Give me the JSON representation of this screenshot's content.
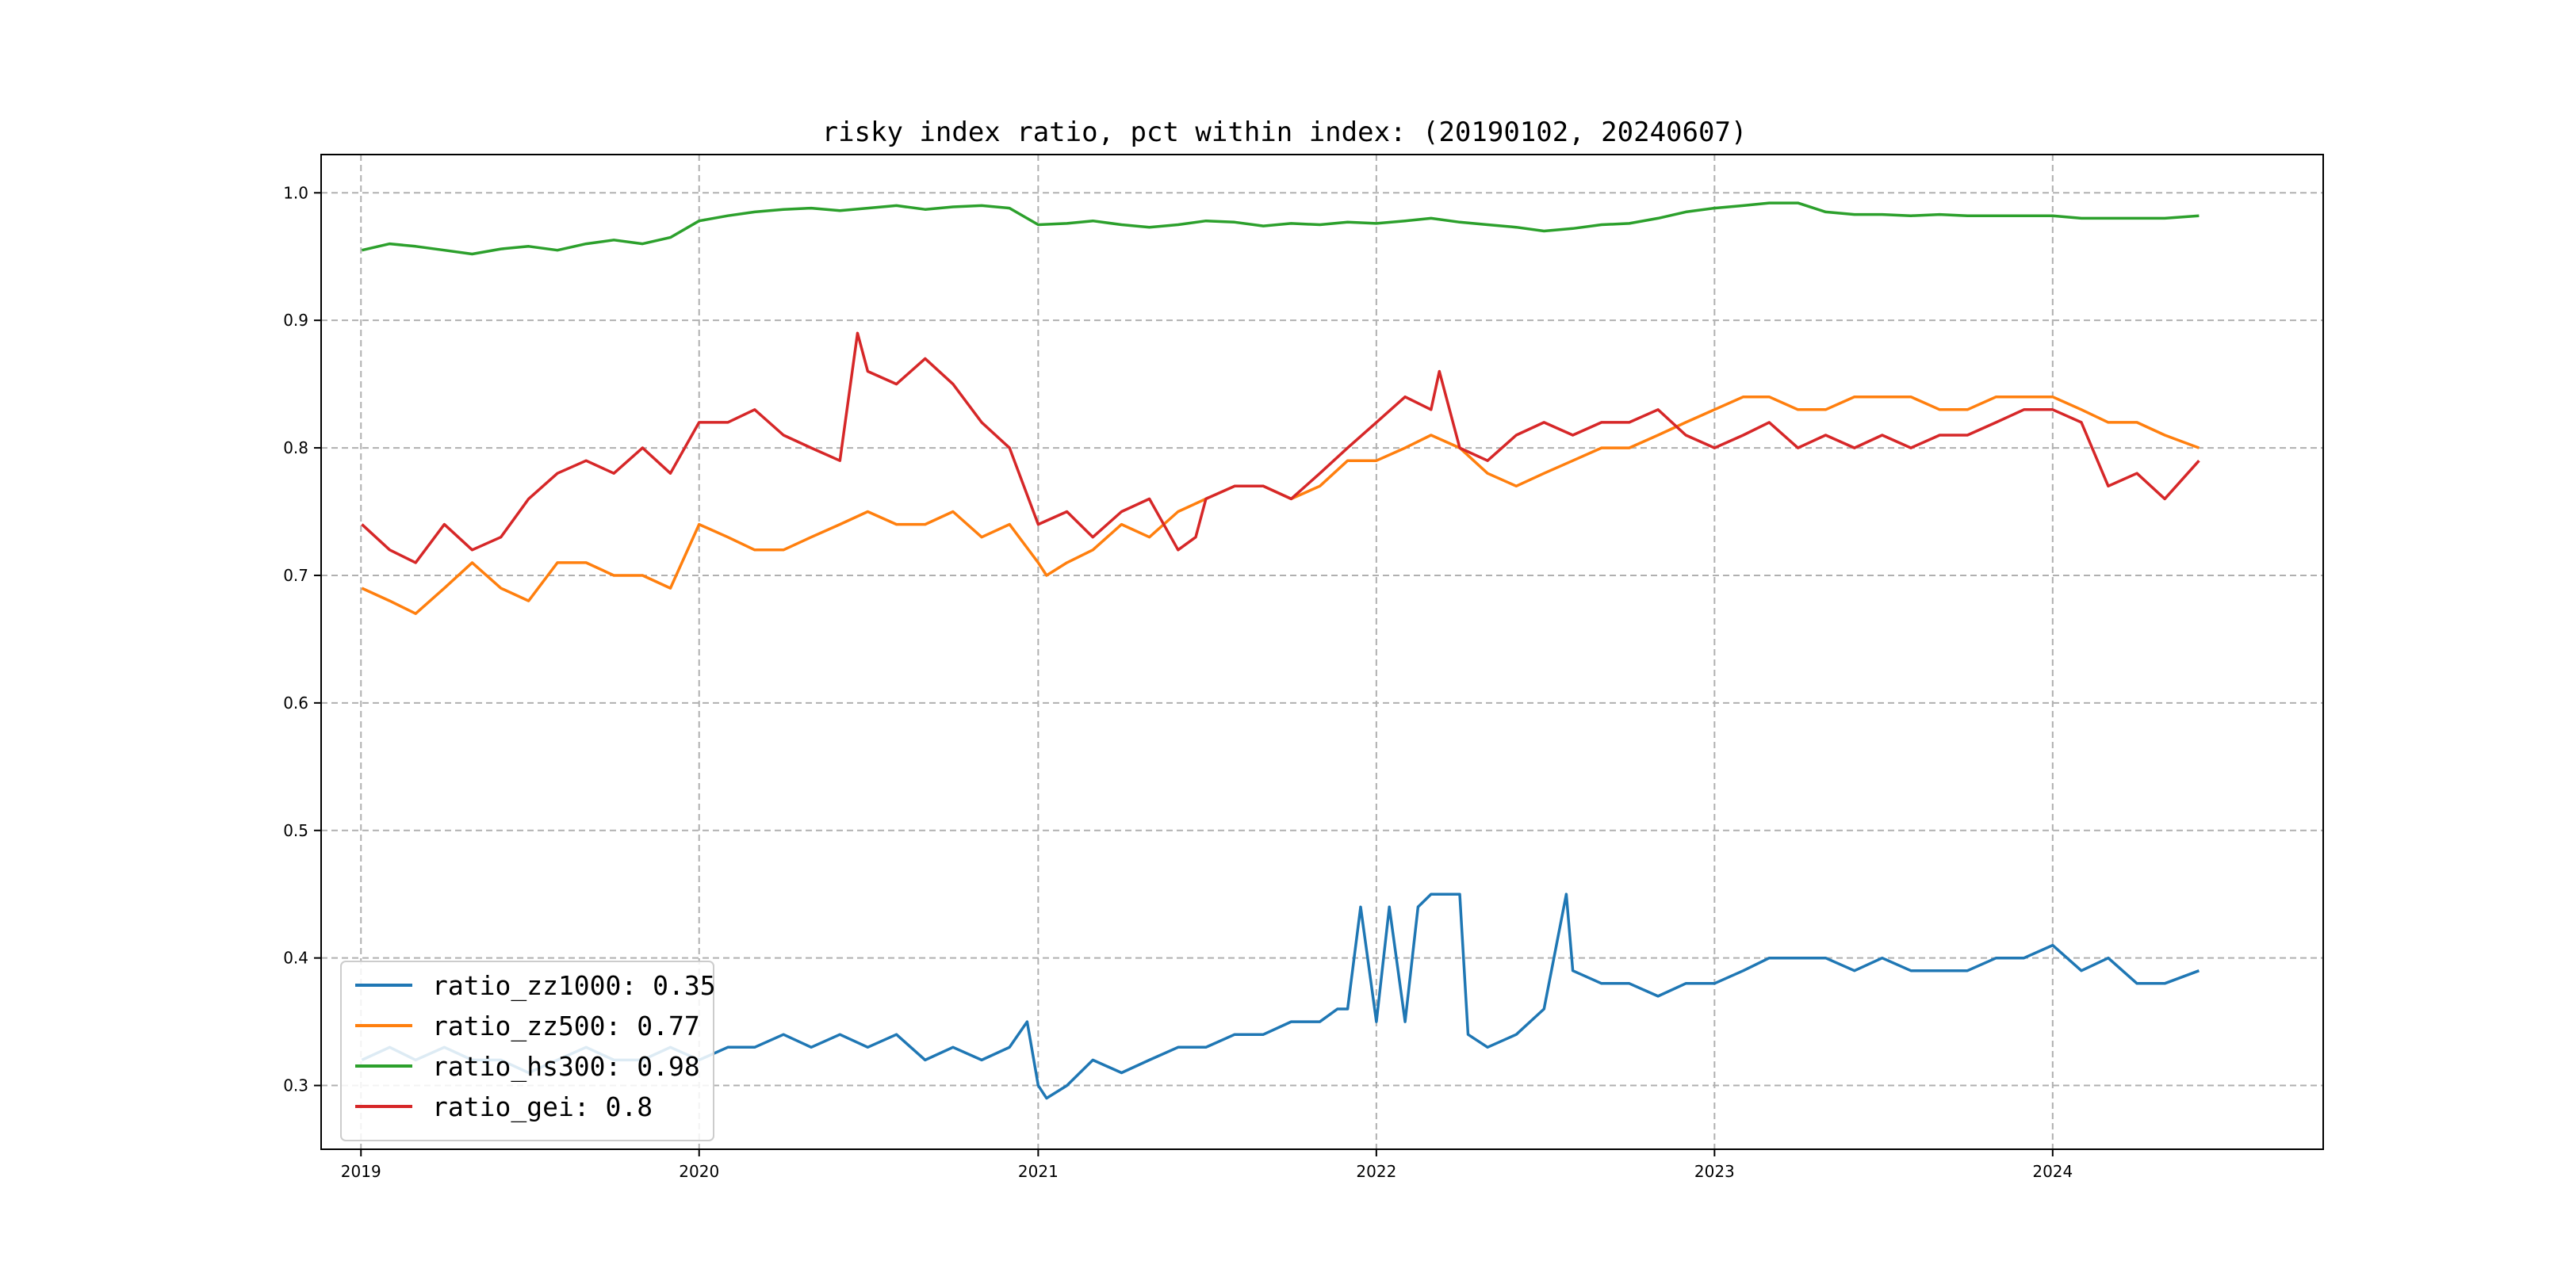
{
  "chart_data": {
    "type": "line",
    "title": "risky index ratio, pct within index: (20190102, 20240607)",
    "xlabel": "",
    "ylabel": "",
    "xlim": [
      "2018-11-19",
      "2024-10-19"
    ],
    "ylim": [
      0.25,
      1.03
    ],
    "x_ticks": [
      "2019",
      "2020",
      "2021",
      "2022",
      "2023",
      "2024"
    ],
    "y_ticks": [
      "0.3",
      "0.4",
      "0.5",
      "0.6",
      "0.7",
      "0.8",
      "0.9",
      "1.0"
    ],
    "grid": true,
    "legend_position": "lower-left",
    "series": [
      {
        "name": "ratio_zz1000: 0.35",
        "color": "#1f77b4",
        "x": [
          "2019-01-02",
          "2019-02-01",
          "2019-03-01",
          "2019-04-01",
          "2019-05-01",
          "2019-06-01",
          "2019-07-01",
          "2019-08-01",
          "2019-09-01",
          "2019-10-01",
          "2019-11-01",
          "2019-12-01",
          "2020-01-01",
          "2020-02-01",
          "2020-03-01",
          "2020-04-01",
          "2020-05-01",
          "2020-06-01",
          "2020-07-01",
          "2020-08-01",
          "2020-09-01",
          "2020-10-01",
          "2020-11-01",
          "2020-12-01",
          "2020-12-20",
          "2021-01-01",
          "2021-01-10",
          "2021-02-01",
          "2021-03-01",
          "2021-04-01",
          "2021-05-01",
          "2021-06-01",
          "2021-07-01",
          "2021-08-01",
          "2021-09-01",
          "2021-10-01",
          "2021-11-01",
          "2021-11-20",
          "2021-12-01",
          "2021-12-15",
          "2022-01-01",
          "2022-01-15",
          "2022-02-01",
          "2022-02-15",
          "2022-03-01",
          "2022-03-20",
          "2022-04-01",
          "2022-04-10",
          "2022-05-01",
          "2022-06-01",
          "2022-07-01",
          "2022-07-25",
          "2022-08-01",
          "2022-09-01",
          "2022-10-01",
          "2022-11-01",
          "2022-12-01",
          "2023-01-01",
          "2023-02-01",
          "2023-03-01",
          "2023-04-01",
          "2023-05-01",
          "2023-06-01",
          "2023-07-01",
          "2023-08-01",
          "2023-09-01",
          "2023-10-01",
          "2023-11-01",
          "2023-12-01",
          "2024-01-01",
          "2024-02-01",
          "2024-03-01",
          "2024-04-01",
          "2024-05-01",
          "2024-06-07"
        ],
        "values": [
          0.32,
          0.33,
          0.32,
          0.33,
          0.32,
          0.32,
          0.31,
          0.32,
          0.33,
          0.32,
          0.32,
          0.33,
          0.32,
          0.33,
          0.33,
          0.34,
          0.33,
          0.34,
          0.33,
          0.34,
          0.32,
          0.33,
          0.32,
          0.33,
          0.35,
          0.3,
          0.29,
          0.3,
          0.32,
          0.31,
          0.32,
          0.33,
          0.33,
          0.34,
          0.34,
          0.35,
          0.35,
          0.36,
          0.36,
          0.44,
          0.35,
          0.44,
          0.35,
          0.44,
          0.45,
          0.45,
          0.45,
          0.34,
          0.33,
          0.34,
          0.36,
          0.45,
          0.39,
          0.38,
          0.38,
          0.37,
          0.38,
          0.38,
          0.39,
          0.4,
          0.4,
          0.4,
          0.39,
          0.4,
          0.39,
          0.39,
          0.39,
          0.4,
          0.4,
          0.41,
          0.39,
          0.4,
          0.38,
          0.38,
          0.39
        ]
      },
      {
        "name": "ratio_zz500: 0.77",
        "color": "#ff7f0e",
        "x": [
          "2019-01-02",
          "2019-02-01",
          "2019-03-01",
          "2019-04-01",
          "2019-05-01",
          "2019-06-01",
          "2019-07-01",
          "2019-08-01",
          "2019-09-01",
          "2019-10-01",
          "2019-11-01",
          "2019-12-01",
          "2020-01-01",
          "2020-02-01",
          "2020-03-01",
          "2020-04-01",
          "2020-05-01",
          "2020-06-01",
          "2020-07-01",
          "2020-08-01",
          "2020-09-01",
          "2020-10-01",
          "2020-11-01",
          "2020-12-01",
          "2021-01-01",
          "2021-01-10",
          "2021-02-01",
          "2021-03-01",
          "2021-04-01",
          "2021-05-01",
          "2021-06-01",
          "2021-07-01",
          "2021-08-01",
          "2021-09-01",
          "2021-10-01",
          "2021-11-01",
          "2021-12-01",
          "2022-01-01",
          "2022-02-01",
          "2022-03-01",
          "2022-04-01",
          "2022-05-01",
          "2022-06-01",
          "2022-07-01",
          "2022-08-01",
          "2022-09-01",
          "2022-10-01",
          "2022-11-01",
          "2022-12-01",
          "2023-01-01",
          "2023-02-01",
          "2023-03-01",
          "2023-04-01",
          "2023-05-01",
          "2023-06-01",
          "2023-07-01",
          "2023-08-01",
          "2023-09-01",
          "2023-10-01",
          "2023-11-01",
          "2023-12-01",
          "2024-01-01",
          "2024-02-01",
          "2024-03-01",
          "2024-04-01",
          "2024-05-01",
          "2024-06-07"
        ],
        "values": [
          0.69,
          0.68,
          0.67,
          0.69,
          0.71,
          0.69,
          0.68,
          0.71,
          0.71,
          0.7,
          0.7,
          0.69,
          0.74,
          0.73,
          0.72,
          0.72,
          0.73,
          0.74,
          0.75,
          0.74,
          0.74,
          0.75,
          0.73,
          0.74,
          0.71,
          0.7,
          0.71,
          0.72,
          0.74,
          0.73,
          0.75,
          0.76,
          0.77,
          0.77,
          0.76,
          0.77,
          0.79,
          0.79,
          0.8,
          0.81,
          0.8,
          0.78,
          0.77,
          0.78,
          0.79,
          0.8,
          0.8,
          0.81,
          0.82,
          0.83,
          0.84,
          0.84,
          0.83,
          0.83,
          0.84,
          0.84,
          0.84,
          0.83,
          0.83,
          0.84,
          0.84,
          0.84,
          0.83,
          0.82,
          0.82,
          0.81,
          0.8
        ]
      },
      {
        "name": "ratio_hs300: 0.98",
        "color": "#2ca02c",
        "x": [
          "2019-01-02",
          "2019-02-01",
          "2019-03-01",
          "2019-04-01",
          "2019-05-01",
          "2019-06-01",
          "2019-07-01",
          "2019-08-01",
          "2019-09-01",
          "2019-10-01",
          "2019-11-01",
          "2019-12-01",
          "2020-01-01",
          "2020-02-01",
          "2020-03-01",
          "2020-04-01",
          "2020-05-01",
          "2020-06-01",
          "2020-07-01",
          "2020-08-01",
          "2020-09-01",
          "2020-10-01",
          "2020-11-01",
          "2020-12-01",
          "2021-01-01",
          "2021-02-01",
          "2021-03-01",
          "2021-04-01",
          "2021-05-01",
          "2021-06-01",
          "2021-07-01",
          "2021-08-01",
          "2021-09-01",
          "2021-10-01",
          "2021-11-01",
          "2021-12-01",
          "2022-01-01",
          "2022-02-01",
          "2022-03-01",
          "2022-04-01",
          "2022-05-01",
          "2022-06-01",
          "2022-07-01",
          "2022-08-01",
          "2022-09-01",
          "2022-10-01",
          "2022-11-01",
          "2022-12-01",
          "2023-01-01",
          "2023-02-01",
          "2023-03-01",
          "2023-04-01",
          "2023-05-01",
          "2023-06-01",
          "2023-07-01",
          "2023-08-01",
          "2023-09-01",
          "2023-10-01",
          "2023-11-01",
          "2023-12-01",
          "2024-01-01",
          "2024-02-01",
          "2024-03-01",
          "2024-04-01",
          "2024-05-01",
          "2024-06-07"
        ],
        "values": [
          0.955,
          0.96,
          0.958,
          0.955,
          0.952,
          0.956,
          0.958,
          0.955,
          0.96,
          0.963,
          0.96,
          0.965,
          0.978,
          0.982,
          0.985,
          0.987,
          0.988,
          0.986,
          0.988,
          0.99,
          0.987,
          0.989,
          0.99,
          0.988,
          0.975,
          0.976,
          0.978,
          0.975,
          0.973,
          0.975,
          0.978,
          0.977,
          0.974,
          0.976,
          0.975,
          0.977,
          0.976,
          0.978,
          0.98,
          0.977,
          0.975,
          0.973,
          0.97,
          0.972,
          0.975,
          0.976,
          0.98,
          0.985,
          0.988,
          0.99,
          0.992,
          0.992,
          0.985,
          0.983,
          0.983,
          0.982,
          0.983,
          0.982,
          0.982,
          0.982,
          0.982,
          0.98,
          0.98,
          0.98,
          0.98,
          0.982
        ]
      },
      {
        "name": "ratio_gei: 0.8",
        "color": "#d62728",
        "x": [
          "2019-01-02",
          "2019-02-01",
          "2019-03-01",
          "2019-04-01",
          "2019-05-01",
          "2019-06-01",
          "2019-07-01",
          "2019-08-01",
          "2019-09-01",
          "2019-10-01",
          "2019-11-01",
          "2019-12-01",
          "2020-01-01",
          "2020-02-01",
          "2020-03-01",
          "2020-04-01",
          "2020-05-01",
          "2020-06-01",
          "2020-06-20",
          "2020-07-01",
          "2020-08-01",
          "2020-09-01",
          "2020-10-01",
          "2020-11-01",
          "2020-12-01",
          "2021-01-01",
          "2021-02-01",
          "2021-03-01",
          "2021-04-01",
          "2021-05-01",
          "2021-06-01",
          "2021-06-20",
          "2021-07-01",
          "2021-08-01",
          "2021-09-01",
          "2021-10-01",
          "2021-11-01",
          "2021-12-01",
          "2022-01-01",
          "2022-02-01",
          "2022-03-01",
          "2022-03-10",
          "2022-04-01",
          "2022-05-01",
          "2022-06-01",
          "2022-07-01",
          "2022-08-01",
          "2022-09-01",
          "2022-10-01",
          "2022-11-01",
          "2022-12-01",
          "2023-01-01",
          "2023-02-01",
          "2023-03-01",
          "2023-04-01",
          "2023-05-01",
          "2023-06-01",
          "2023-07-01",
          "2023-08-01",
          "2023-09-01",
          "2023-10-01",
          "2023-11-01",
          "2023-12-01",
          "2024-01-01",
          "2024-02-01",
          "2024-03-01",
          "2024-04-01",
          "2024-05-01",
          "2024-06-07"
        ],
        "values": [
          0.74,
          0.72,
          0.71,
          0.74,
          0.72,
          0.73,
          0.76,
          0.78,
          0.79,
          0.78,
          0.8,
          0.78,
          0.82,
          0.82,
          0.83,
          0.81,
          0.8,
          0.79,
          0.89,
          0.86,
          0.85,
          0.87,
          0.85,
          0.82,
          0.8,
          0.74,
          0.75,
          0.73,
          0.75,
          0.76,
          0.72,
          0.73,
          0.76,
          0.77,
          0.77,
          0.76,
          0.78,
          0.8,
          0.82,
          0.84,
          0.83,
          0.86,
          0.8,
          0.79,
          0.81,
          0.82,
          0.81,
          0.82,
          0.82,
          0.83,
          0.81,
          0.8,
          0.81,
          0.82,
          0.8,
          0.81,
          0.8,
          0.81,
          0.8,
          0.81,
          0.81,
          0.82,
          0.83,
          0.83,
          0.82,
          0.77,
          0.78,
          0.76,
          0.79
        ]
      }
    ]
  }
}
